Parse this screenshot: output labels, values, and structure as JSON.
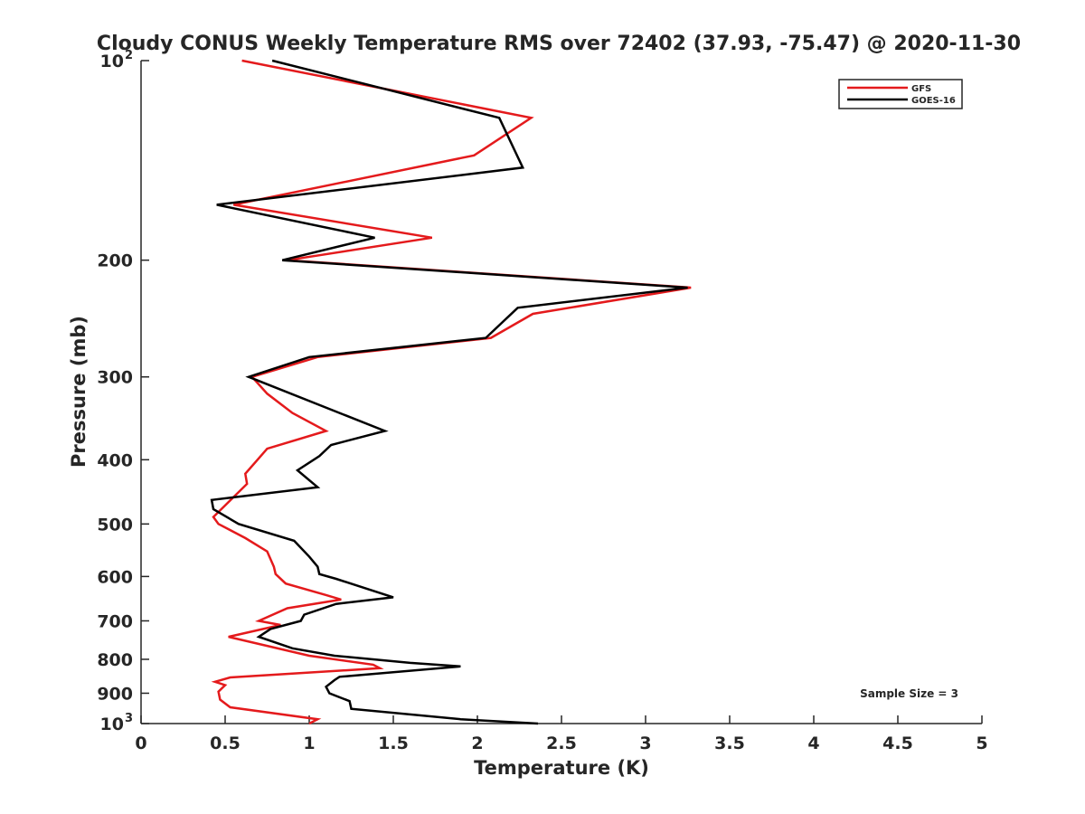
{
  "chart_data": {
    "type": "line",
    "title": "Cloudy CONUS Weekly Temperature RMS over 72402 (37.93, -75.47) @ 2020-11-30",
    "xlabel": "Temperature (K)",
    "ylabel": "Pressure (mb)",
    "xlim": [
      0,
      5
    ],
    "ylim": [
      100,
      1000
    ],
    "yscale": "log",
    "y_reversed": true,
    "grid": false,
    "legend_position": "top-right",
    "annotation": "Sample Size = 3",
    "xticks": [
      {
        "value": 0,
        "label": "0"
      },
      {
        "value": 0.5,
        "label": "0.5"
      },
      {
        "value": 1,
        "label": "1"
      },
      {
        "value": 1.5,
        "label": "1.5"
      },
      {
        "value": 2,
        "label": "2"
      },
      {
        "value": 2.5,
        "label": "2.5"
      },
      {
        "value": 3,
        "label": "3"
      },
      {
        "value": 3.5,
        "label": "3.5"
      },
      {
        "value": 4,
        "label": "4"
      },
      {
        "value": 4.5,
        "label": "4.5"
      },
      {
        "value": 5,
        "label": "5"
      }
    ],
    "yticks": [
      {
        "value": 100,
        "base": "10",
        "exp": "2"
      },
      {
        "value": 200,
        "label": "200"
      },
      {
        "value": 300,
        "label": "300"
      },
      {
        "value": 400,
        "label": "400"
      },
      {
        "value": 500,
        "label": "500"
      },
      {
        "value": 600,
        "label": "600"
      },
      {
        "value": 700,
        "label": "700"
      },
      {
        "value": 800,
        "label": "800"
      },
      {
        "value": 900,
        "label": "900"
      },
      {
        "value": 1000,
        "base": "10",
        "exp": "3"
      }
    ],
    "series": [
      {
        "name": "GFS",
        "color": "#e41a1c",
        "points": [
          [
            0.6,
            100
          ],
          [
            2.32,
            122
          ],
          [
            1.98,
            139
          ],
          [
            0.55,
            165
          ],
          [
            1.73,
            185
          ],
          [
            0.87,
            200
          ],
          [
            3.27,
            220
          ],
          [
            2.33,
            241
          ],
          [
            2.08,
            262
          ],
          [
            1.05,
            280
          ],
          [
            0.66,
            300
          ],
          [
            0.75,
            318
          ],
          [
            0.9,
            340
          ],
          [
            1.1,
            362
          ],
          [
            0.75,
            385
          ],
          [
            0.62,
            420
          ],
          [
            0.63,
            435
          ],
          [
            0.43,
            488
          ],
          [
            0.46,
            500
          ],
          [
            0.62,
            525
          ],
          [
            0.75,
            550
          ],
          [
            0.79,
            580
          ],
          [
            0.8,
            595
          ],
          [
            0.86,
            615
          ],
          [
            1.1,
            640
          ],
          [
            1.19,
            650
          ],
          [
            0.87,
            670
          ],
          [
            0.7,
            700
          ],
          [
            0.83,
            710
          ],
          [
            0.52,
            740
          ],
          [
            1.0,
            790
          ],
          [
            1.38,
            815
          ],
          [
            1.42,
            825
          ],
          [
            0.53,
            852
          ],
          [
            0.44,
            865
          ],
          [
            0.5,
            875
          ],
          [
            0.46,
            895
          ],
          [
            0.47,
            920
          ],
          [
            0.53,
            945
          ],
          [
            1.05,
            985
          ],
          [
            1.0,
            1000
          ]
        ]
      },
      {
        "name": "GOES-16",
        "color": "#000000",
        "points": [
          [
            0.78,
            100
          ],
          [
            2.13,
            122
          ],
          [
            2.27,
            145
          ],
          [
            0.45,
            165
          ],
          [
            1.39,
            185
          ],
          [
            0.84,
            200
          ],
          [
            3.25,
            220
          ],
          [
            2.24,
            236
          ],
          [
            2.05,
            262
          ],
          [
            1.0,
            280
          ],
          [
            0.64,
            300
          ],
          [
            1.45,
            362
          ],
          [
            1.13,
            380
          ],
          [
            1.06,
            395
          ],
          [
            0.93,
            415
          ],
          [
            1.05,
            440
          ],
          [
            0.42,
            460
          ],
          [
            0.43,
            475
          ],
          [
            0.58,
            500
          ],
          [
            0.91,
            530
          ],
          [
            1.0,
            560
          ],
          [
            1.05,
            580
          ],
          [
            1.06,
            595
          ],
          [
            1.16,
            605
          ],
          [
            1.5,
            645
          ],
          [
            1.16,
            660
          ],
          [
            0.97,
            685
          ],
          [
            0.95,
            700
          ],
          [
            0.77,
            720
          ],
          [
            0.7,
            740
          ],
          [
            0.9,
            770
          ],
          [
            1.15,
            790
          ],
          [
            1.6,
            810
          ],
          [
            1.9,
            820
          ],
          [
            1.18,
            850
          ],
          [
            1.15,
            860
          ],
          [
            1.1,
            880
          ],
          [
            1.12,
            900
          ],
          [
            1.24,
            925
          ],
          [
            1.25,
            950
          ],
          [
            1.9,
            985
          ],
          [
            2.36,
            1000
          ]
        ]
      }
    ]
  }
}
